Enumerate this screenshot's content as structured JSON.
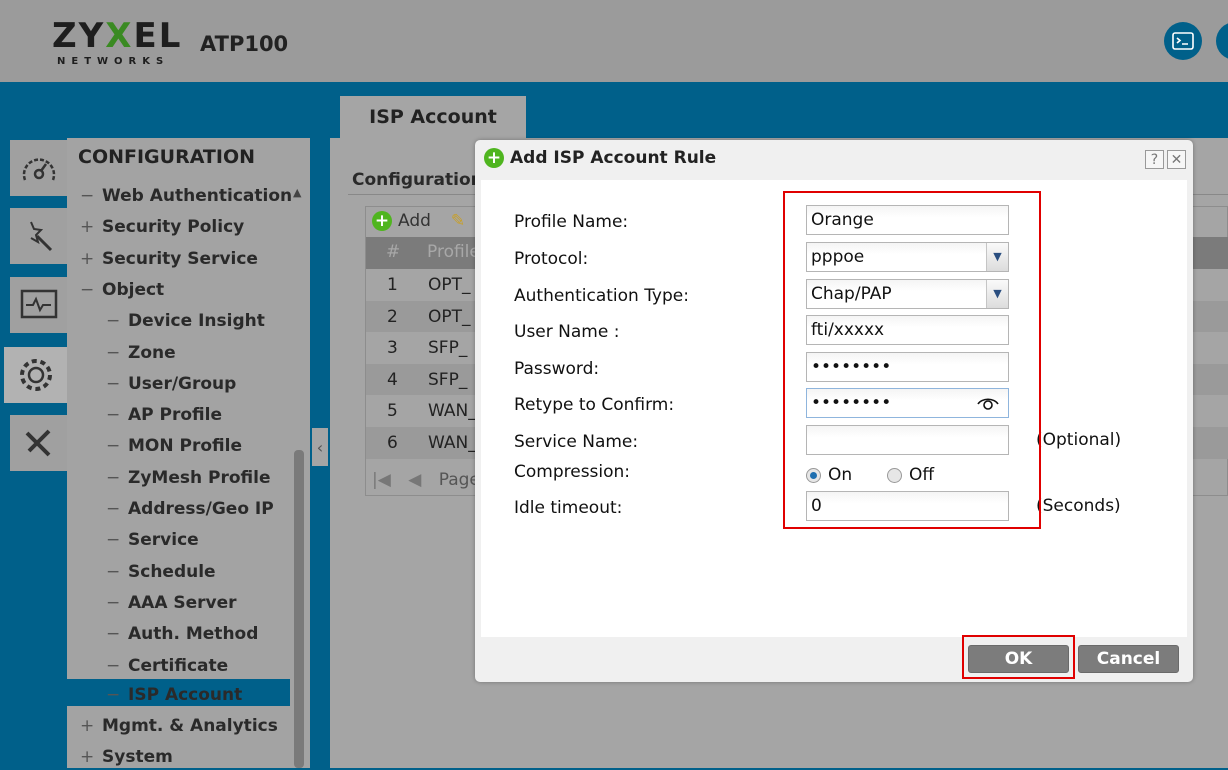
{
  "header": {
    "brand": "ZYXEL",
    "brand_sub": "NETWORKS",
    "model": "ATP100",
    "icons": [
      "console-icon",
      "window-icon"
    ]
  },
  "tab": {
    "label": "ISP Account"
  },
  "left_icons": [
    "dashboard-icon",
    "wizard-icon",
    "monitor-icon",
    "gear-icon",
    "tools-icon"
  ],
  "sidebar": {
    "title": "CONFIGURATION",
    "items": [
      {
        "pm": "−",
        "label": "Web Authentication",
        "sub": false
      },
      {
        "pm": "+",
        "label": "Security Policy",
        "sub": false
      },
      {
        "pm": "+",
        "label": "Security Service",
        "sub": false
      },
      {
        "pm": "−",
        "label": "Object",
        "sub": false
      },
      {
        "pm": "−",
        "label": "Device Insight",
        "sub": true
      },
      {
        "pm": "−",
        "label": "Zone",
        "sub": true
      },
      {
        "pm": "−",
        "label": "User/Group",
        "sub": true
      },
      {
        "pm": "−",
        "label": "AP Profile",
        "sub": true
      },
      {
        "pm": "−",
        "label": "MON Profile",
        "sub": true
      },
      {
        "pm": "−",
        "label": "ZyMesh Profile",
        "sub": true
      },
      {
        "pm": "−",
        "label": "Address/Geo IP",
        "sub": true
      },
      {
        "pm": "−",
        "label": "Service",
        "sub": true
      },
      {
        "pm": "−",
        "label": "Schedule",
        "sub": true
      },
      {
        "pm": "−",
        "label": "AAA Server",
        "sub": true
      },
      {
        "pm": "−",
        "label": "Auth. Method",
        "sub": true
      },
      {
        "pm": "−",
        "label": "Certificate",
        "sub": true
      },
      {
        "pm": "−",
        "label": "ISP Account",
        "sub": true,
        "selected": true
      },
      {
        "pm": "+",
        "label": "Mgmt. & Analytics",
        "sub": false
      },
      {
        "pm": "+",
        "label": "System",
        "sub": false
      }
    ]
  },
  "main": {
    "section": "Configuration",
    "toolbar": {
      "add": "Add"
    },
    "table": {
      "headers": [
        "#",
        "Profile"
      ],
      "rows": [
        [
          "1",
          "OPT_"
        ],
        [
          "2",
          "OPT_"
        ],
        [
          "3",
          "SFP_"
        ],
        [
          "4",
          "SFP_"
        ],
        [
          "5",
          "WAN_"
        ],
        [
          "6",
          "WAN_"
        ]
      ]
    },
    "pager": "Page"
  },
  "dialog": {
    "title": "Add ISP Account Rule",
    "help": "?",
    "close": "✕",
    "labels": {
      "profile_name": "Profile Name:",
      "protocol": "Protocol:",
      "auth_type": "Authentication Type:",
      "user_name": "User Name :",
      "password": "Password:",
      "retype": "Retype to Confirm:",
      "service_name": "Service Name:",
      "compression": "Compression:",
      "idle_timeout": "Idle timeout:"
    },
    "values": {
      "profile_name": "Orange",
      "protocol": "pppoe",
      "auth_type": "Chap/PAP",
      "user_name": "fti/xxxxx",
      "password": "••••••••",
      "retype": "••••••••",
      "service_name": "",
      "idle_timeout": "0"
    },
    "compression": {
      "on": "On",
      "off": "Off",
      "selected": "On"
    },
    "hints": {
      "optional": "(Optional)",
      "seconds": "(Seconds)"
    },
    "ok": "OK",
    "cancel": "Cancel"
  },
  "colors": {
    "accent": "#00608a",
    "highlight": "#e00000",
    "add_green": "#4fb51f"
  }
}
